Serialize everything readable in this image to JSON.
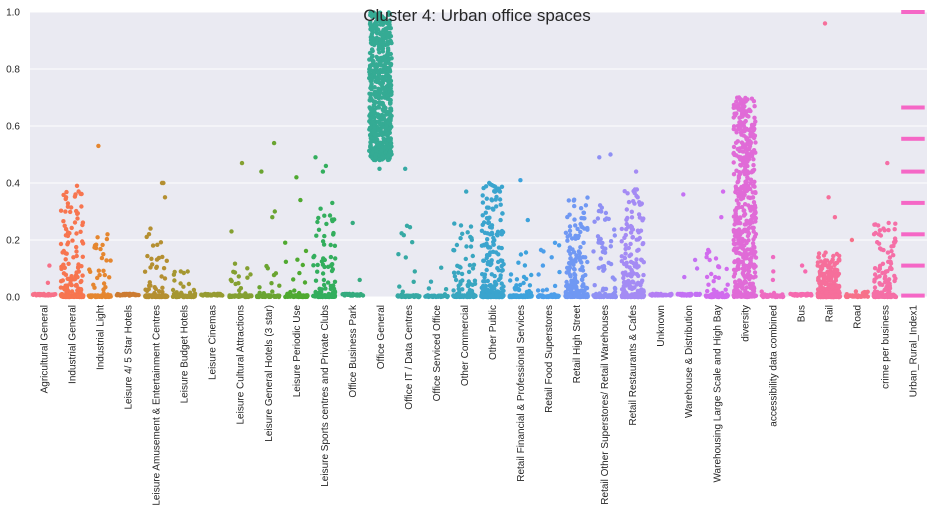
{
  "chart_data": {
    "type": "scatter",
    "title": "Cluster 4: Urban office spaces",
    "xlabel": "",
    "ylabel": "",
    "ylim": [
      0,
      1.0
    ],
    "yticks": [
      "0.0",
      "0.2",
      "0.4",
      "0.6",
      "0.8",
      "1.0"
    ],
    "grid": true,
    "legend": "none",
    "plot_style": "strip plot with jitter, gray background, white gridlines",
    "categories": [
      "Agricultural General",
      "Industrial General",
      "Industrial Light",
      "Leisure 4/ 5 Star Hotels",
      "Leisure Amusement & Entertainment Centres",
      "Leisure Budget Hotels",
      "Leisure Cinemas",
      "Leisure Cultural Attractions",
      "Leisure General Hotels (3 star)",
      "Leisure Periodic Use",
      "Leisure Sports centres and Private Clubs",
      "Office Business Park",
      "Office General",
      "Office IT / Data Centres",
      "Office Serviced Office",
      "Other Commercial",
      "Other Public",
      "Retail Financial & Professional Services",
      "Retail Food Superstores",
      "Retail High Street",
      "Retail Other Superstores/ Retail Warehouses",
      "Retail Restaurants & Cafes",
      "Unknown",
      "Warehouse & Distribution",
      "Warehousing  Large Scale and High Bay",
      "diversity",
      "accessibility data combined",
      "Bus",
      "Rail",
      "Road",
      "crime per business",
      "Urban_Rural_Index1"
    ],
    "colors": [
      "#f77189",
      "#f7754f",
      "#e5862f",
      "#cc7b31",
      "#b48f31",
      "#a59731",
      "#969b31",
      "#84a031",
      "#6aa431",
      "#4fa930",
      "#33ae5d",
      "#34ab7e",
      "#35ab94",
      "#36a9a4",
      "#37a7b3",
      "#38a6c0",
      "#3aa4ce",
      "#3da2dc",
      "#4c9eea",
      "#7098f3",
      "#8f90f4",
      "#a48bf4",
      "#b47ef4",
      "#c371f4",
      "#d16bee",
      "#e06bd7",
      "#ee6bc1",
      "#f66aaf",
      "#f66f9b",
      "#f77189",
      "#f56fa7",
      "#f567c6"
    ],
    "distributions": [
      {
        "n": 50,
        "base": 0.005,
        "max": 0.11,
        "skew": 0.98,
        "outliers": [
          0.11
        ]
      },
      {
        "n": 200,
        "base": 0.0,
        "max": 0.39,
        "skew": 0.4,
        "outliers": [
          0.39,
          0.35,
          0.36
        ]
      },
      {
        "n": 70,
        "base": 0.0,
        "max": 0.22,
        "skew": 0.55,
        "outliers": [
          0.53,
          0.22
        ]
      },
      {
        "n": 40,
        "base": 0.005,
        "max": 0.005,
        "skew": 1.0,
        "outliers": []
      },
      {
        "n": 120,
        "base": 0.0,
        "max": 0.25,
        "skew": 0.65,
        "outliers": [
          0.4,
          0.4,
          0.35
        ]
      },
      {
        "n": 80,
        "base": 0.0,
        "max": 0.1,
        "skew": 0.7,
        "outliers": []
      },
      {
        "n": 40,
        "base": 0.005,
        "max": 0.005,
        "skew": 1.0,
        "outliers": []
      },
      {
        "n": 60,
        "base": 0.0,
        "max": 0.12,
        "skew": 0.75,
        "outliers": [
          0.47,
          0.23
        ]
      },
      {
        "n": 60,
        "base": 0.0,
        "max": 0.15,
        "skew": 0.75,
        "outliers": [
          0.54,
          0.44,
          0.3,
          0.28
        ]
      },
      {
        "n": 60,
        "base": 0.0,
        "max": 0.2,
        "skew": 0.75,
        "outliers": [
          0.42,
          0.34
        ]
      },
      {
        "n": 160,
        "base": 0.0,
        "max": 0.3,
        "skew": 0.55,
        "outliers": [
          0.49,
          0.46,
          0.44,
          0.33,
          0.31
        ]
      },
      {
        "n": 40,
        "base": 0.005,
        "max": 0.06,
        "skew": 0.97,
        "outliers": [
          0.26,
          0.06
        ]
      },
      {
        "n": 600,
        "base": 0.48,
        "max": 1.0,
        "skew": 0.0,
        "outliers": [
          0.45
        ]
      },
      {
        "n": 60,
        "base": 0.0,
        "max": 0.29,
        "skew": 0.85,
        "outliers": [
          0.45,
          0.25
        ]
      },
      {
        "n": 50,
        "base": 0.0,
        "max": 0.13,
        "skew": 0.85,
        "outliers": []
      },
      {
        "n": 130,
        "base": 0.0,
        "max": 0.26,
        "skew": 0.55,
        "outliers": [
          0.37
        ]
      },
      {
        "n": 260,
        "base": 0.0,
        "max": 0.4,
        "skew": 0.3,
        "outliers": [
          0.4,
          0.38
        ]
      },
      {
        "n": 100,
        "base": 0.0,
        "max": 0.16,
        "skew": 0.7,
        "outliers": [
          0.41,
          0.27
        ]
      },
      {
        "n": 70,
        "base": 0.0,
        "max": 0.2,
        "skew": 0.75,
        "outliers": [
          0.19,
          0.16
        ]
      },
      {
        "n": 240,
        "base": 0.0,
        "max": 0.35,
        "skew": 0.35,
        "outliers": []
      },
      {
        "n": 120,
        "base": 0.0,
        "max": 0.33,
        "skew": 0.55,
        "outliers": [
          0.5,
          0.49
        ]
      },
      {
        "n": 220,
        "base": 0.0,
        "max": 0.38,
        "skew": 0.3,
        "outliers": [
          0.44
        ]
      },
      {
        "n": 40,
        "base": 0.005,
        "max": 0.005,
        "skew": 1.0,
        "outliers": []
      },
      {
        "n": 40,
        "base": 0.005,
        "max": 0.005,
        "skew": 1.0,
        "outliers": [
          0.36,
          0.1,
          0.07,
          0.13
        ]
      },
      {
        "n": 90,
        "base": 0.0,
        "max": 0.17,
        "skew": 0.6,
        "outliers": [
          0.37,
          0.28
        ]
      },
      {
        "n": 500,
        "base": 0.0,
        "max": 0.7,
        "skew": 0.05,
        "outliers": [
          0.7,
          0.69
        ]
      },
      {
        "n": 50,
        "base": 0.0,
        "max": 0.02,
        "skew": 0.75,
        "outliers": [
          0.14,
          0.09,
          0.06
        ]
      },
      {
        "n": 40,
        "base": 0.005,
        "max": 0.005,
        "skew": 1.0,
        "outliers": [
          0.11,
          0.09
        ]
      },
      {
        "n": 300,
        "base": 0.0,
        "max": 0.16,
        "skew": 0.25,
        "outliers": [
          0.96,
          0.35,
          0.28
        ]
      },
      {
        "n": 50,
        "base": 0.0,
        "max": 0.02,
        "skew": 0.7,
        "outliers": [
          0.2
        ]
      },
      {
        "n": 180,
        "base": 0.0,
        "max": 0.26,
        "skew": 0.45,
        "outliers": [
          0.47,
          0.26,
          0.24
        ]
      },
      {
        "n": 0,
        "base": 0.0,
        "max": 1.0,
        "skew": 0.0,
        "outliers": [],
        "bands": [
          0.005,
          0.11,
          0.22,
          0.33,
          0.44,
          0.555,
          0.665,
          1.0
        ]
      }
    ]
  }
}
